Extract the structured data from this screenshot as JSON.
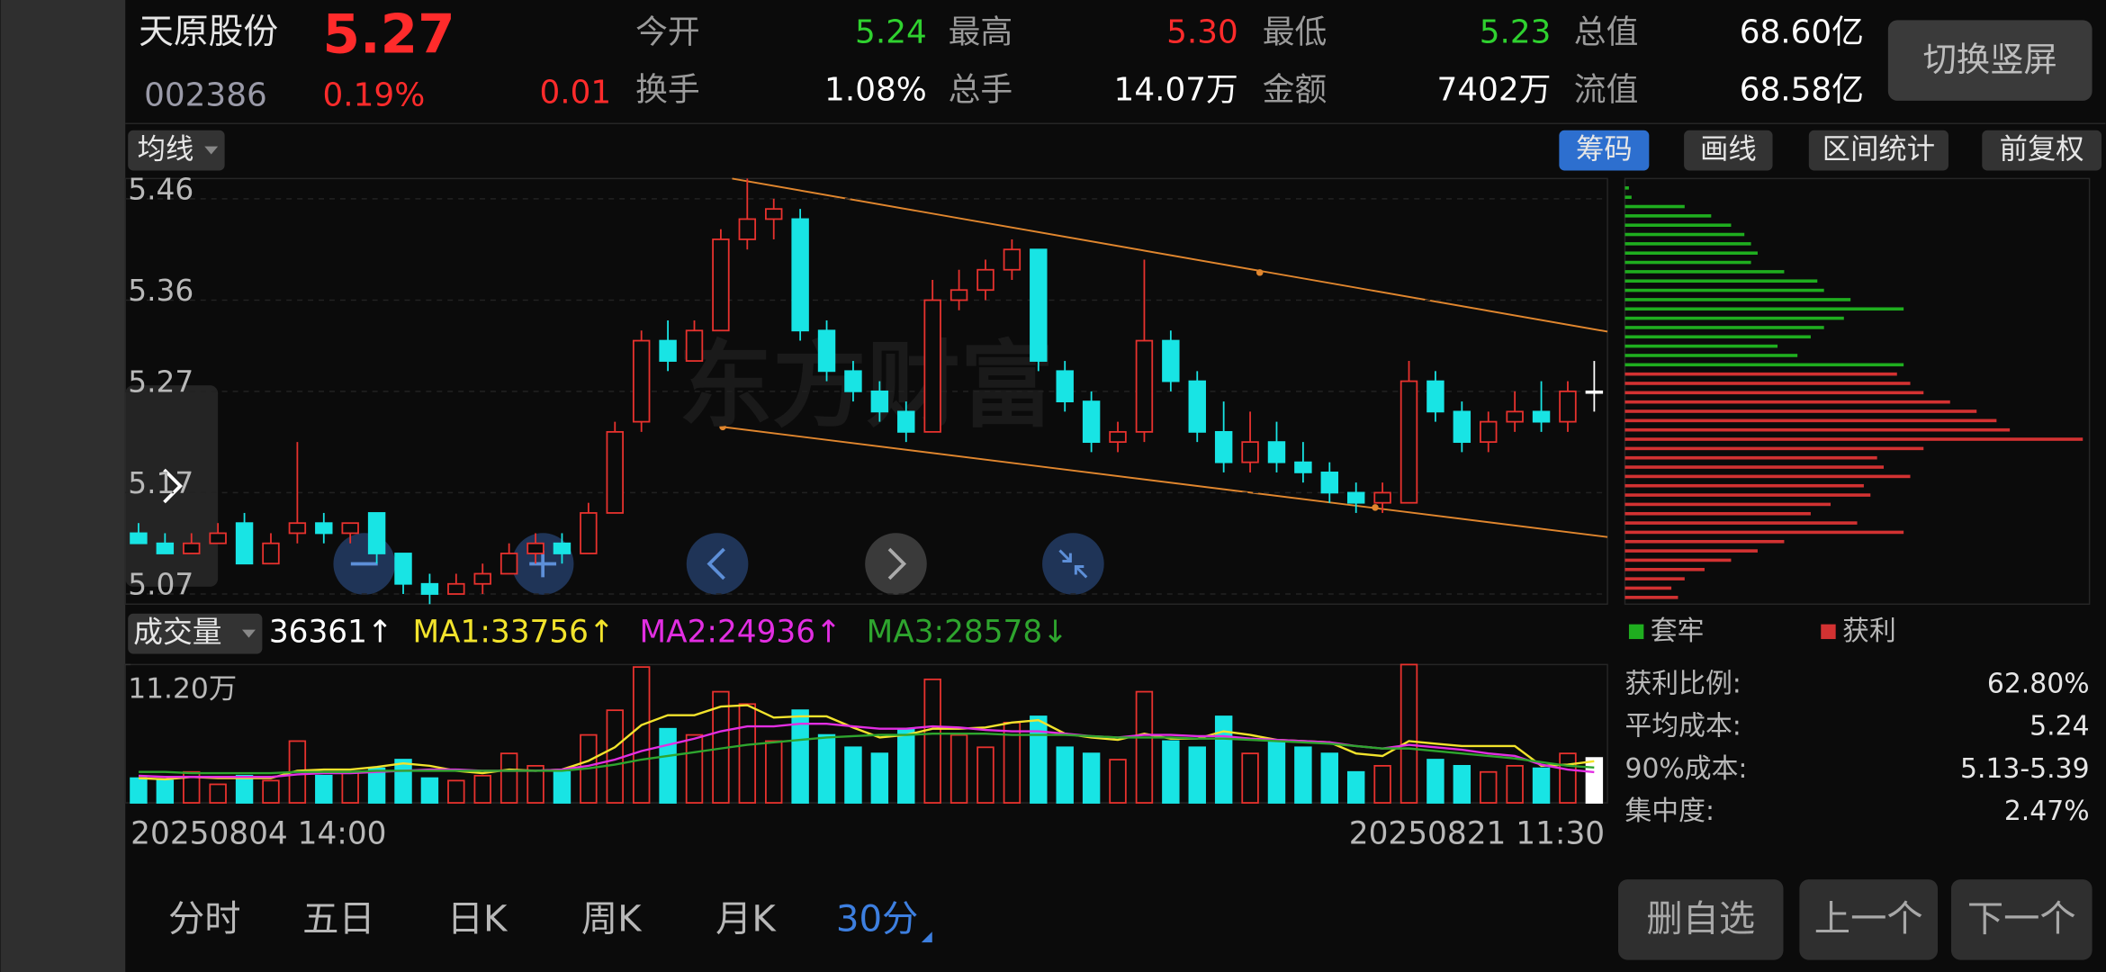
{
  "header": {
    "name": "天原股份",
    "price": "5.27",
    "code": "002386",
    "change_pct": "0.19%",
    "change": "0.01",
    "stats": [
      {
        "label": "今开",
        "value": "5.24",
        "color": "#2fd12f"
      },
      {
        "label": "最高",
        "value": "5.30",
        "color": "#ff2b2b"
      },
      {
        "label": "最低",
        "value": "5.23",
        "color": "#2fd12f"
      },
      {
        "label": "总值",
        "value": "68.60亿",
        "color": "#ffffff"
      },
      {
        "label": "换手",
        "value": "1.08%",
        "color": "#ffffff"
      },
      {
        "label": "总手",
        "value": "14.07万",
        "color": "#ffffff"
      },
      {
        "label": "金额",
        "value": "7402万",
        "color": "#ffffff"
      },
      {
        "label": "流值",
        "value": "68.58亿",
        "color": "#ffffff"
      }
    ],
    "orientation_button": "切换竖屏"
  },
  "toolbar": {
    "ma_menu": "均线",
    "buttons": [
      "筹码",
      "画线",
      "区间统计",
      "前复权"
    ],
    "active": 0
  },
  "chart_data": [
    {
      "type": "candlestick",
      "watermark": "东方财富",
      "up_color": "#e8322e",
      "down_color": "#18e4e4",
      "flat_color": "#ffffff",
      "open": [
        5.13,
        5.12,
        5.11,
        5.12,
        5.14,
        5.1,
        5.13,
        5.14,
        5.13,
        5.15,
        5.11,
        5.08,
        5.07,
        5.08,
        5.09,
        5.11,
        5.12,
        5.11,
        5.15,
        5.24,
        5.32,
        5.3,
        5.33,
        5.42,
        5.44,
        5.44,
        5.33,
        5.29,
        5.27,
        5.25,
        5.23,
        5.36,
        5.37,
        5.39,
        5.41,
        5.29,
        5.26,
        5.22,
        5.23,
        5.32,
        5.28,
        5.23,
        5.2,
        5.22,
        5.2,
        5.19,
        5.17,
        5.16,
        5.16,
        5.28,
        5.25,
        5.22,
        5.24,
        5.25,
        5.24,
        5.27
      ],
      "high": [
        5.14,
        5.13,
        5.13,
        5.14,
        5.15,
        5.13,
        5.22,
        5.15,
        5.14,
        5.15,
        5.11,
        5.09,
        5.09,
        5.1,
        5.12,
        5.13,
        5.13,
        5.16,
        5.24,
        5.33,
        5.34,
        5.34,
        5.43,
        5.48,
        5.46,
        5.45,
        5.34,
        5.3,
        5.28,
        5.26,
        5.38,
        5.39,
        5.4,
        5.42,
        5.41,
        5.3,
        5.27,
        5.24,
        5.4,
        5.33,
        5.29,
        5.26,
        5.25,
        5.24,
        5.22,
        5.2,
        5.18,
        5.18,
        5.3,
        5.29,
        5.26,
        5.25,
        5.27,
        5.28,
        5.28,
        5.3
      ],
      "low": [
        5.12,
        5.11,
        5.11,
        5.12,
        5.1,
        5.1,
        5.12,
        5.12,
        5.12,
        5.1,
        5.07,
        5.06,
        5.07,
        5.07,
        5.09,
        5.1,
        5.1,
        5.11,
        5.15,
        5.23,
        5.29,
        5.3,
        5.33,
        5.41,
        5.42,
        5.32,
        5.28,
        5.26,
        5.24,
        5.22,
        5.23,
        5.35,
        5.36,
        5.38,
        5.29,
        5.25,
        5.21,
        5.21,
        5.22,
        5.27,
        5.22,
        5.19,
        5.19,
        5.19,
        5.18,
        5.16,
        5.15,
        5.15,
        5.16,
        5.24,
        5.21,
        5.21,
        5.23,
        5.23,
        5.23,
        5.25
      ],
      "close": [
        5.12,
        5.11,
        5.12,
        5.13,
        5.1,
        5.12,
        5.14,
        5.13,
        5.14,
        5.11,
        5.08,
        5.07,
        5.08,
        5.09,
        5.11,
        5.12,
        5.11,
        5.15,
        5.23,
        5.32,
        5.3,
        5.33,
        5.42,
        5.44,
        5.45,
        5.33,
        5.29,
        5.27,
        5.25,
        5.23,
        5.36,
        5.37,
        5.39,
        5.41,
        5.3,
        5.26,
        5.22,
        5.23,
        5.32,
        5.28,
        5.23,
        5.2,
        5.22,
        5.2,
        5.19,
        5.17,
        5.16,
        5.17,
        5.28,
        5.25,
        5.22,
        5.24,
        5.25,
        5.24,
        5.27,
        5.27
      ],
      "ylim": [
        5.06,
        5.48
      ],
      "yticks": [
        5.46,
        5.36,
        5.27,
        5.17,
        5.07
      ],
      "grid": true,
      "trend_color": "#e0862e"
    },
    {
      "type": "bar",
      "title": "成交量",
      "legend": [
        {
          "text": "36361↑",
          "color": "#ffffff"
        },
        {
          "text": "MA1:33756↑",
          "color": "#f2e32c"
        },
        {
          "text": "MA2:24936↑",
          "color": "#e22ee2"
        },
        {
          "text": "MA3:28578↓",
          "color": "#2ea52e"
        }
      ],
      "values": [
        20000,
        18000,
        25000,
        15000,
        22000,
        18000,
        50000,
        22000,
        25000,
        28000,
        35000,
        20000,
        18000,
        22000,
        40000,
        30000,
        25000,
        55000,
        75000,
        110000,
        60000,
        55000,
        90000,
        80000,
        50000,
        75000,
        55000,
        45000,
        40000,
        60000,
        100000,
        55000,
        45000,
        65000,
        70000,
        45000,
        40000,
        35000,
        90000,
        50000,
        45000,
        70000,
        40000,
        50000,
        45000,
        40000,
        25000,
        30000,
        112000,
        35000,
        30000,
        25000,
        30000,
        28000,
        40000,
        36361
      ],
      "series": [
        {
          "name": "MA1",
          "color": "#f2e32c",
          "values": [
            20000,
            19000,
            21000,
            20000,
            20000,
            20000,
            26000,
            27000,
            27000,
            29000,
            32000,
            30000,
            26000,
            24000,
            27000,
            26000,
            27000,
            34000,
            45000,
            63000,
            71000,
            71000,
            78000,
            79000,
            69000,
            70000,
            70000,
            61000,
            53000,
            55000,
            60000,
            60000,
            61000,
            65000,
            67000,
            56000,
            53000,
            51000,
            56000,
            52000,
            52000,
            58000,
            55000,
            51000,
            50000,
            49000,
            40000,
            38000,
            50000,
            48000,
            46000,
            46000,
            46000,
            30000,
            31000,
            33756
          ]
        },
        {
          "name": "MA2",
          "color": "#e22ee2",
          "values": [
            22000,
            21000,
            21000,
            21000,
            21000,
            21000,
            23000,
            24000,
            24000,
            25000,
            26000,
            27000,
            27000,
            26000,
            26000,
            26000,
            27000,
            30000,
            35000,
            42000,
            47000,
            52000,
            58000,
            62000,
            62000,
            64000,
            64000,
            62000,
            60000,
            60000,
            62000,
            61000,
            59000,
            58000,
            58000,
            56000,
            54000,
            53000,
            55000,
            55000,
            54000,
            54000,
            52000,
            51000,
            50000,
            49000,
            46000,
            44000,
            47000,
            45000,
            43000,
            40000,
            38000,
            31000,
            27000,
            24936
          ]
        },
        {
          "name": "MA3",
          "color": "#2ea52e",
          "values": [
            25000,
            25000,
            24000,
            24000,
            24000,
            24000,
            25000,
            25000,
            25000,
            26000,
            26000,
            26000,
            26000,
            26000,
            26000,
            26000,
            26000,
            28000,
            31000,
            35000,
            38000,
            41000,
            44000,
            47000,
            49000,
            51000,
            53000,
            54000,
            55000,
            55000,
            56000,
            56000,
            56000,
            55000,
            55000,
            55000,
            54000,
            53000,
            53000,
            53000,
            52000,
            52000,
            51000,
            50000,
            49000,
            48000,
            46000,
            44000,
            44000,
            42000,
            40000,
            38000,
            36000,
            33000,
            30000,
            28578
          ]
        }
      ],
      "ylim": [
        0,
        112000
      ],
      "yticks": [
        {
          "value": 112000,
          "label": "11.20万"
        }
      ],
      "x_labels": [
        "20250804 14:00",
        "20250821 11:30"
      ]
    },
    {
      "type": "barh",
      "series": [
        {
          "name": "套牢",
          "color": "#1fae1f",
          "values": [
            3,
            5,
            45,
            65,
            80,
            90,
            95,
            100,
            95,
            120,
            145,
            150,
            170,
            210,
            165,
            150,
            140,
            115,
            130,
            210
          ]
        },
        {
          "name": "获利",
          "color": "#d33232",
          "values": [
            205,
            215,
            225,
            245,
            265,
            280,
            290,
            345,
            225,
            190,
            195,
            215,
            180,
            185,
            155,
            140,
            175,
            210,
            120,
            100,
            80,
            60,
            45,
            35,
            40
          ]
        }
      ],
      "xlim": [
        0,
        350
      ],
      "stats": [
        {
          "label": "获利比例:",
          "value": "62.80%"
        },
        {
          "label": "平均成本:",
          "value": "5.24"
        },
        {
          "label": "90%成本:",
          "value": "5.13-5.39"
        },
        {
          "label": "集中度:",
          "value": "2.47%"
        }
      ]
    }
  ],
  "tabs": {
    "items": [
      "分时",
      "五日",
      "日K",
      "周K",
      "月K",
      "30分"
    ],
    "active": 5
  },
  "actions": [
    "删自选",
    "上一个",
    "下一个"
  ]
}
